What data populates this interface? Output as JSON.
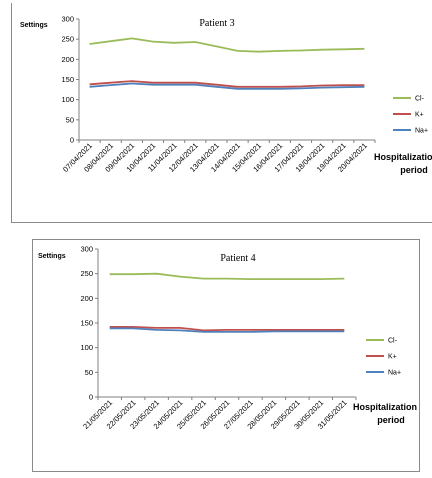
{
  "chart_data": [
    {
      "type": "line",
      "title": "Patient 3",
      "ylabel": "Settings",
      "xlabel_line1": "Hospitalization",
      "xlabel_line2": "period",
      "categories": [
        "07/04/2021",
        "08/04/2021",
        "09/04/2021",
        "10/04/2021",
        "11/04/2021",
        "12/04/2021",
        "13/04/2021",
        "14/04/2021",
        "15/04/2021",
        "16/04/2021",
        "17/04/2021",
        "18/04/2021",
        "19/04/2021",
        "20/04/2021"
      ],
      "ylim": [
        0,
        300
      ],
      "yticks": [
        "0",
        "50",
        "100",
        "150",
        "200",
        "250",
        "300"
      ],
      "grid": false,
      "legend_position": "right",
      "series": [
        {
          "name": "Cl-",
          "color": "#9BBB59",
          "values": [
            238,
            245,
            252,
            244,
            241,
            243,
            232,
            221,
            219,
            221,
            222,
            224,
            225,
            226
          ]
        },
        {
          "name": "K+",
          "color": "#C0504D",
          "values": [
            138,
            142,
            146,
            142,
            142,
            142,
            137,
            132,
            132,
            132,
            133,
            135,
            136,
            136
          ]
        },
        {
          "name": "Na+",
          "color": "#4F81BD",
          "values": [
            132,
            136,
            140,
            137,
            137,
            137,
            132,
            127,
            127,
            127,
            128,
            130,
            131,
            132
          ]
        }
      ]
    },
    {
      "type": "line",
      "title": "Patient 4",
      "ylabel": "Settings",
      "xlabel_line1": "Hospitalization",
      "xlabel_line2": "period",
      "categories": [
        "21/05/2021",
        "22/05/2021",
        "23/05/2021",
        "24/05/2021",
        "25/05/2021",
        "26/05/2021",
        "27/05/2021",
        "28/05/2021",
        "29/05/2021",
        "30/05/2021",
        "31/05/2021"
      ],
      "ylim": [
        0,
        300
      ],
      "yticks": [
        "0",
        "50",
        "100",
        "150",
        "200",
        "250",
        "300"
      ],
      "grid": false,
      "legend_position": "right",
      "series": [
        {
          "name": "Cl-",
          "color": "#9BBB59",
          "values": [
            249,
            249,
            250,
            244,
            240,
            240,
            239,
            239,
            239,
            239,
            240
          ]
        },
        {
          "name": "K+",
          "color": "#C0504D",
          "values": [
            142,
            142,
            140,
            140,
            135,
            136,
            136,
            136,
            136,
            136,
            136
          ]
        },
        {
          "name": "Na+",
          "color": "#4F81BD",
          "values": [
            139,
            139,
            136,
            135,
            132,
            132,
            132,
            133,
            133,
            133,
            133
          ]
        }
      ]
    }
  ]
}
